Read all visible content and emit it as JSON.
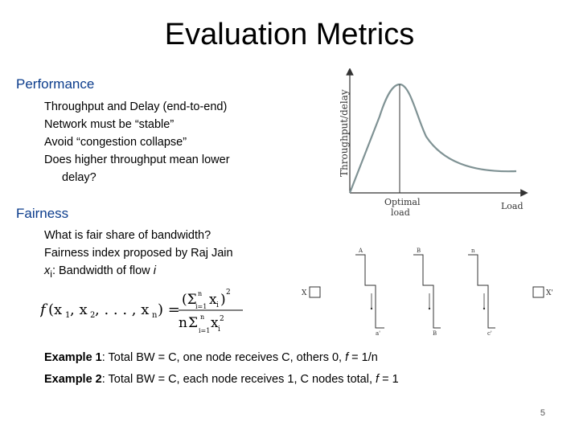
{
  "title": "Evaluation Metrics",
  "performance": {
    "heading": "Performance",
    "items": [
      "Throughput and Delay (end-to-end)",
      "Network must be “stable”",
      "Avoid “congestion collapse”",
      "Does higher throughput mean lower",
      "delay?"
    ]
  },
  "fairness": {
    "heading": "Fairness",
    "items": [
      "What is fair share of bandwidth?",
      "Fairness index proposed by Raj Jain"
    ],
    "xi_var": "x",
    "xi_sub": "i",
    "xi_text": ": Bandwidth of flow ",
    "xi_flow": "i"
  },
  "chart": {
    "ylabel": "Throughput/delay",
    "xlabel": "Load",
    "annotation_line1": "Optimal",
    "annotation_line2": "load"
  },
  "topology": {
    "left_label": "X",
    "right_label": "X'",
    "top_labels": [
      "A",
      "B",
      "n"
    ],
    "bottom_labels": [
      "a'",
      "B",
      "c'"
    ]
  },
  "examples": [
    {
      "label": "Example 1",
      "text": ": Total BW = C, one node receives C, others 0, ",
      "var": "f",
      "tail": " = 1/n"
    },
    {
      "label": "Example 2",
      "text": ": Total BW = C, each node receives 1, C nodes total, ",
      "var": "f",
      "tail": " = 1"
    }
  ],
  "page_number": "5"
}
